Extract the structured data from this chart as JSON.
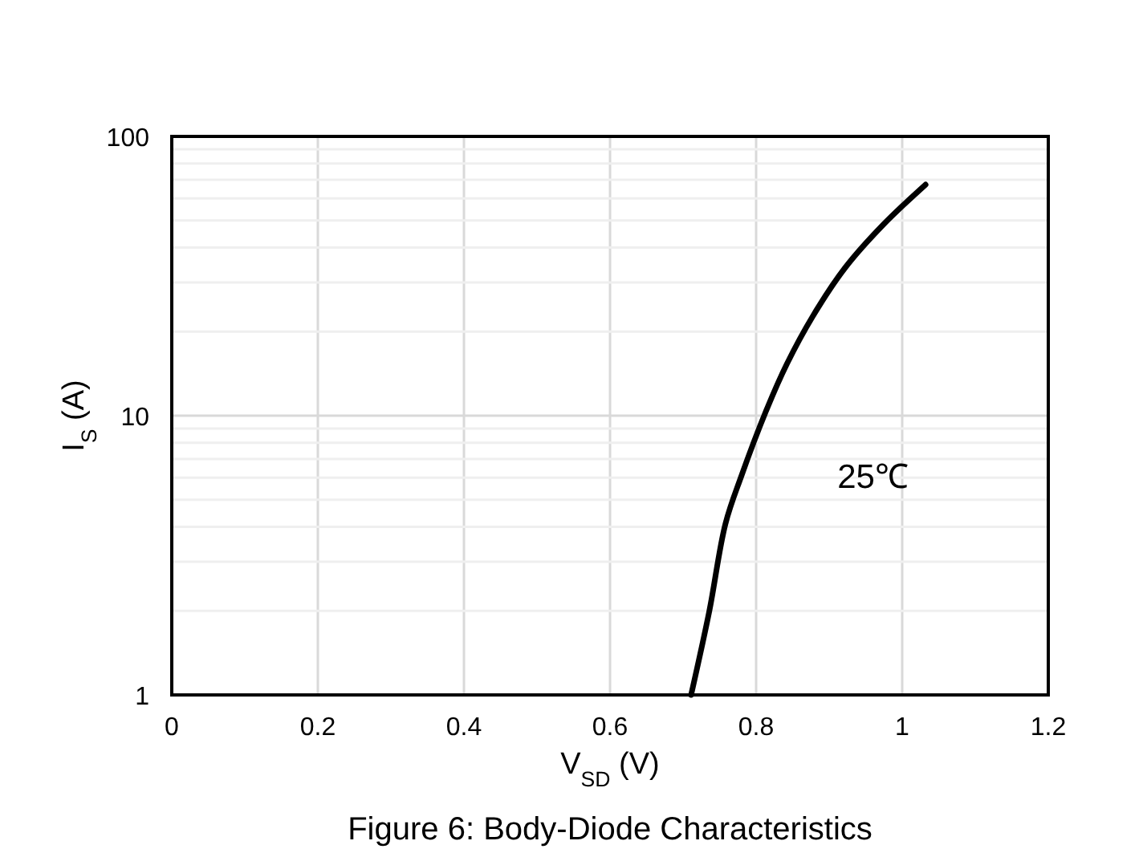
{
  "chart_data": {
    "type": "line",
    "title": "Figure 6: Body-Diode Characteristics",
    "xlabel": "V$_{SD}$ (V)",
    "ylabel": "I$_{S}$ (A)",
    "x": [
      0.711,
      0.736,
      0.758,
      0.78,
      0.813,
      0.842,
      0.878,
      0.922,
      0.974,
      1.032
    ],
    "series": [
      {
        "color": "#000000",
        "values": [
          1,
          2.0,
          4.1,
          6.1,
          10.3,
          15.3,
          22.8,
          33.9,
          48.3,
          67.2
        ]
      }
    ],
    "xlim": [
      0,
      1.2
    ],
    "xticks": [
      0,
      0.2,
      0.4,
      0.6,
      0.8,
      1,
      1.2
    ],
    "ylim": [
      1,
      100
    ],
    "log": true,
    "yticks": [
      1,
      {
        "value": 2,
        "label": null
      },
      {
        "value": 3,
        "label": null
      },
      {
        "value": 4,
        "label": null
      },
      {
        "value": 5,
        "label": null
      },
      {
        "value": 6,
        "label": null
      },
      {
        "value": 7,
        "label": null
      },
      {
        "value": 8,
        "label": null
      },
      {
        "value": 9,
        "label": null
      },
      10,
      {
        "value": 20,
        "label": null
      },
      {
        "value": 30,
        "label": null
      },
      {
        "value": 40,
        "label": null
      },
      {
        "value": 50,
        "label": null
      },
      {
        "value": 60,
        "label": null
      },
      {
        "value": 70,
        "label": null
      },
      {
        "value": 80,
        "label": null
      },
      {
        "value": 90,
        "label": null
      },
      100
    ],
    "grid": true,
    "marker": "none",
    "line_style": "solid",
    "annotations": [
      "25℃"
    ]
  }
}
